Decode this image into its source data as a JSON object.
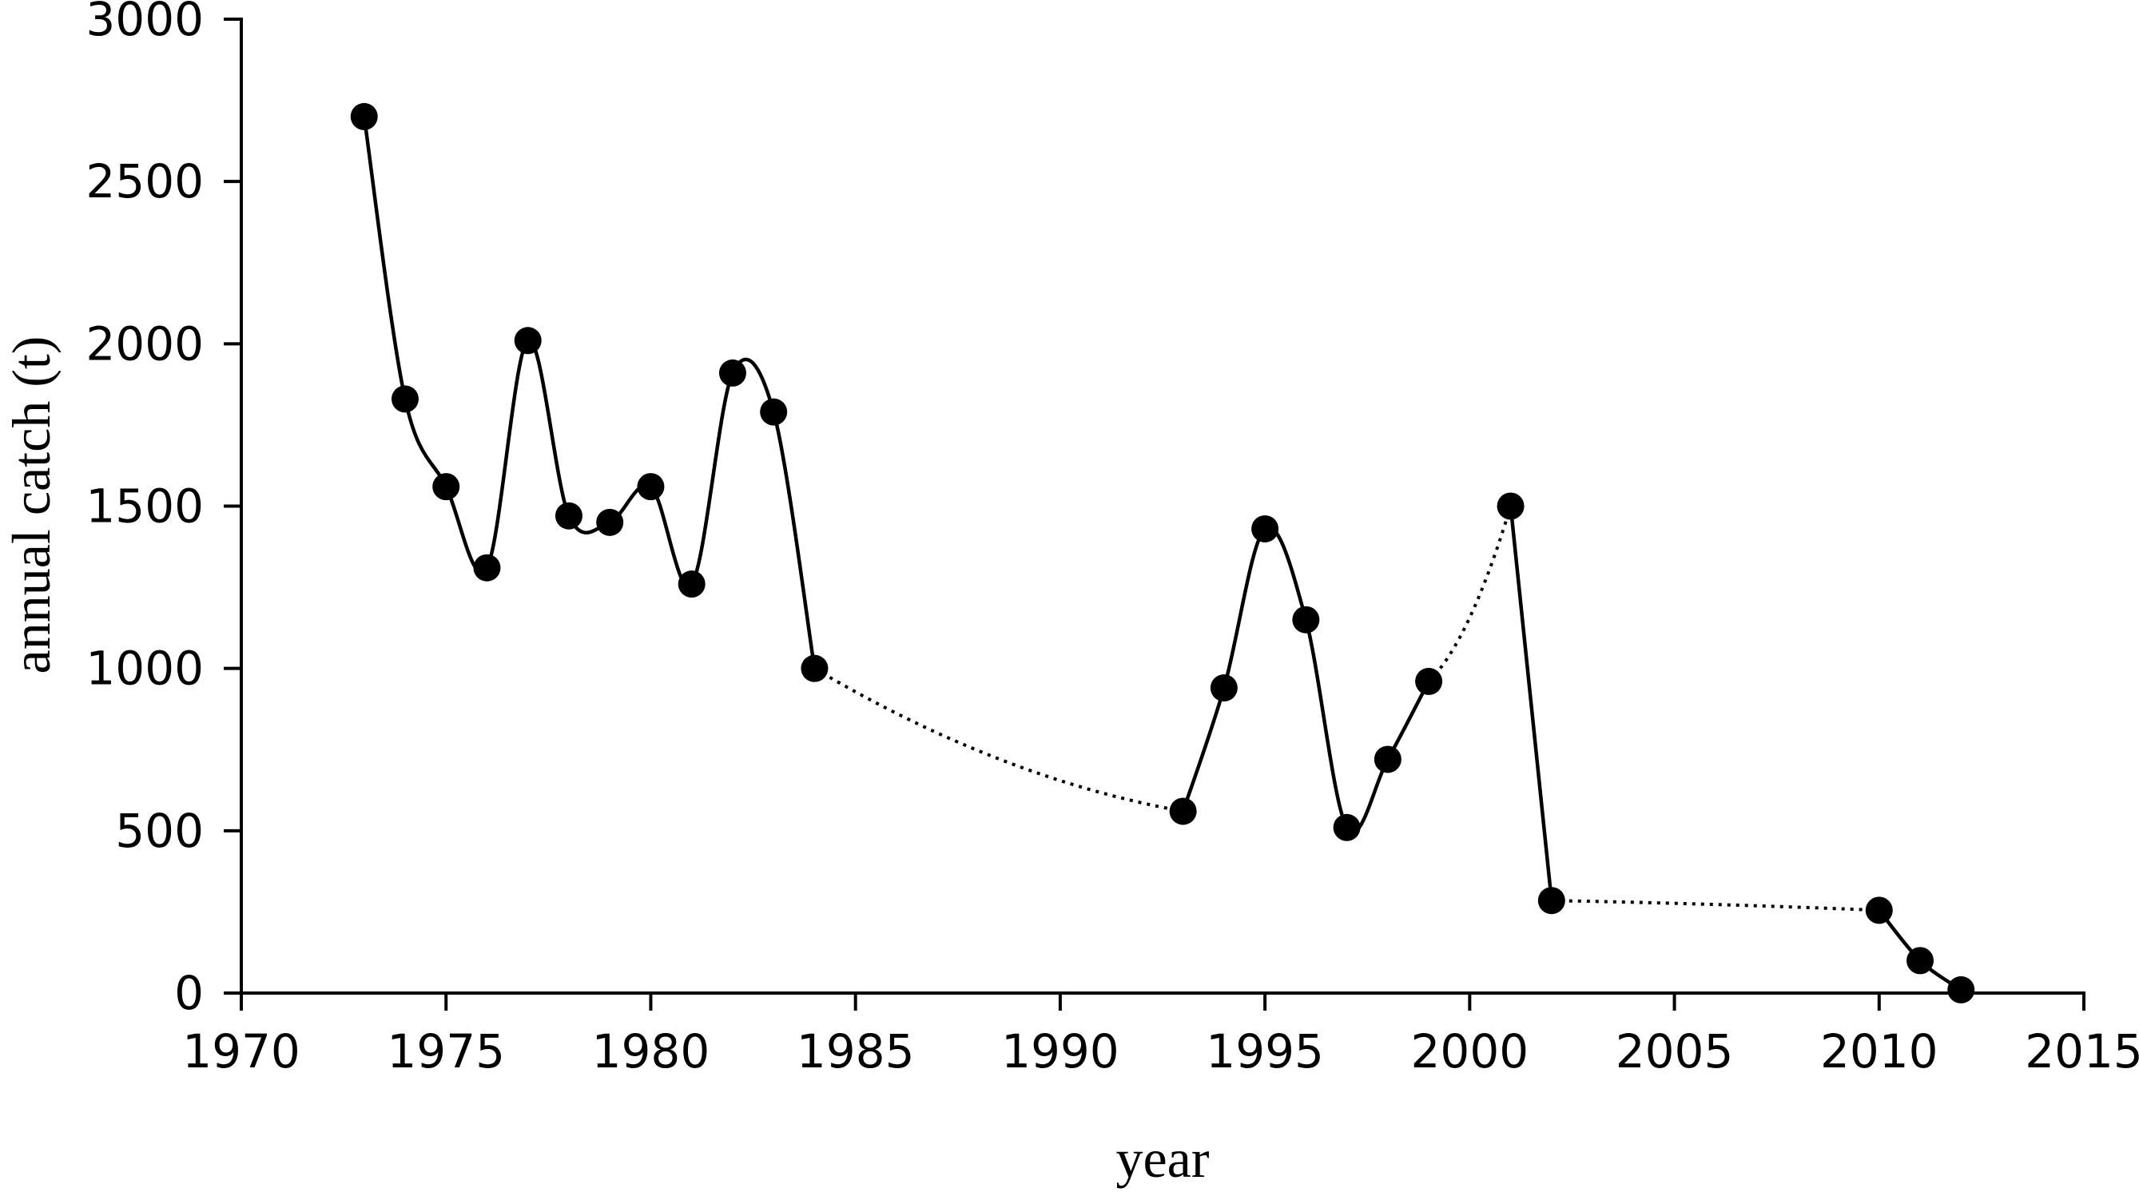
{
  "chart_data": {
    "type": "line",
    "title": "",
    "xlabel": "year",
    "ylabel": "annual catch (t)",
    "xlim": [
      1970,
      2015
    ],
    "ylim": [
      0,
      3000
    ],
    "xticks": [
      1970,
      1975,
      1980,
      1985,
      1990,
      1995,
      2000,
      2005,
      2010,
      2015
    ],
    "yticks": [
      0,
      500,
      1000,
      1500,
      2000,
      2500,
      3000
    ],
    "grid": false,
    "legend": "none",
    "colors": {
      "line": "#000000",
      "marker": "#000000"
    },
    "series": [
      {
        "x": [
          1973,
          1974,
          1975,
          1976,
          1977,
          1978,
          1979,
          1980,
          1981,
          1982,
          1983,
          1984,
          1993,
          1994,
          1995,
          1996,
          1997,
          1998,
          1999,
          2001,
          2002,
          2010,
          2011,
          2012
        ],
        "y": [
          2700,
          1830,
          1560,
          1310,
          2010,
          1470,
          1450,
          1560,
          1260,
          1910,
          1790,
          1000,
          560,
          940,
          1430,
          1150,
          510,
          720,
          960,
          1500,
          285,
          255,
          100,
          10
        ]
      }
    ]
  }
}
